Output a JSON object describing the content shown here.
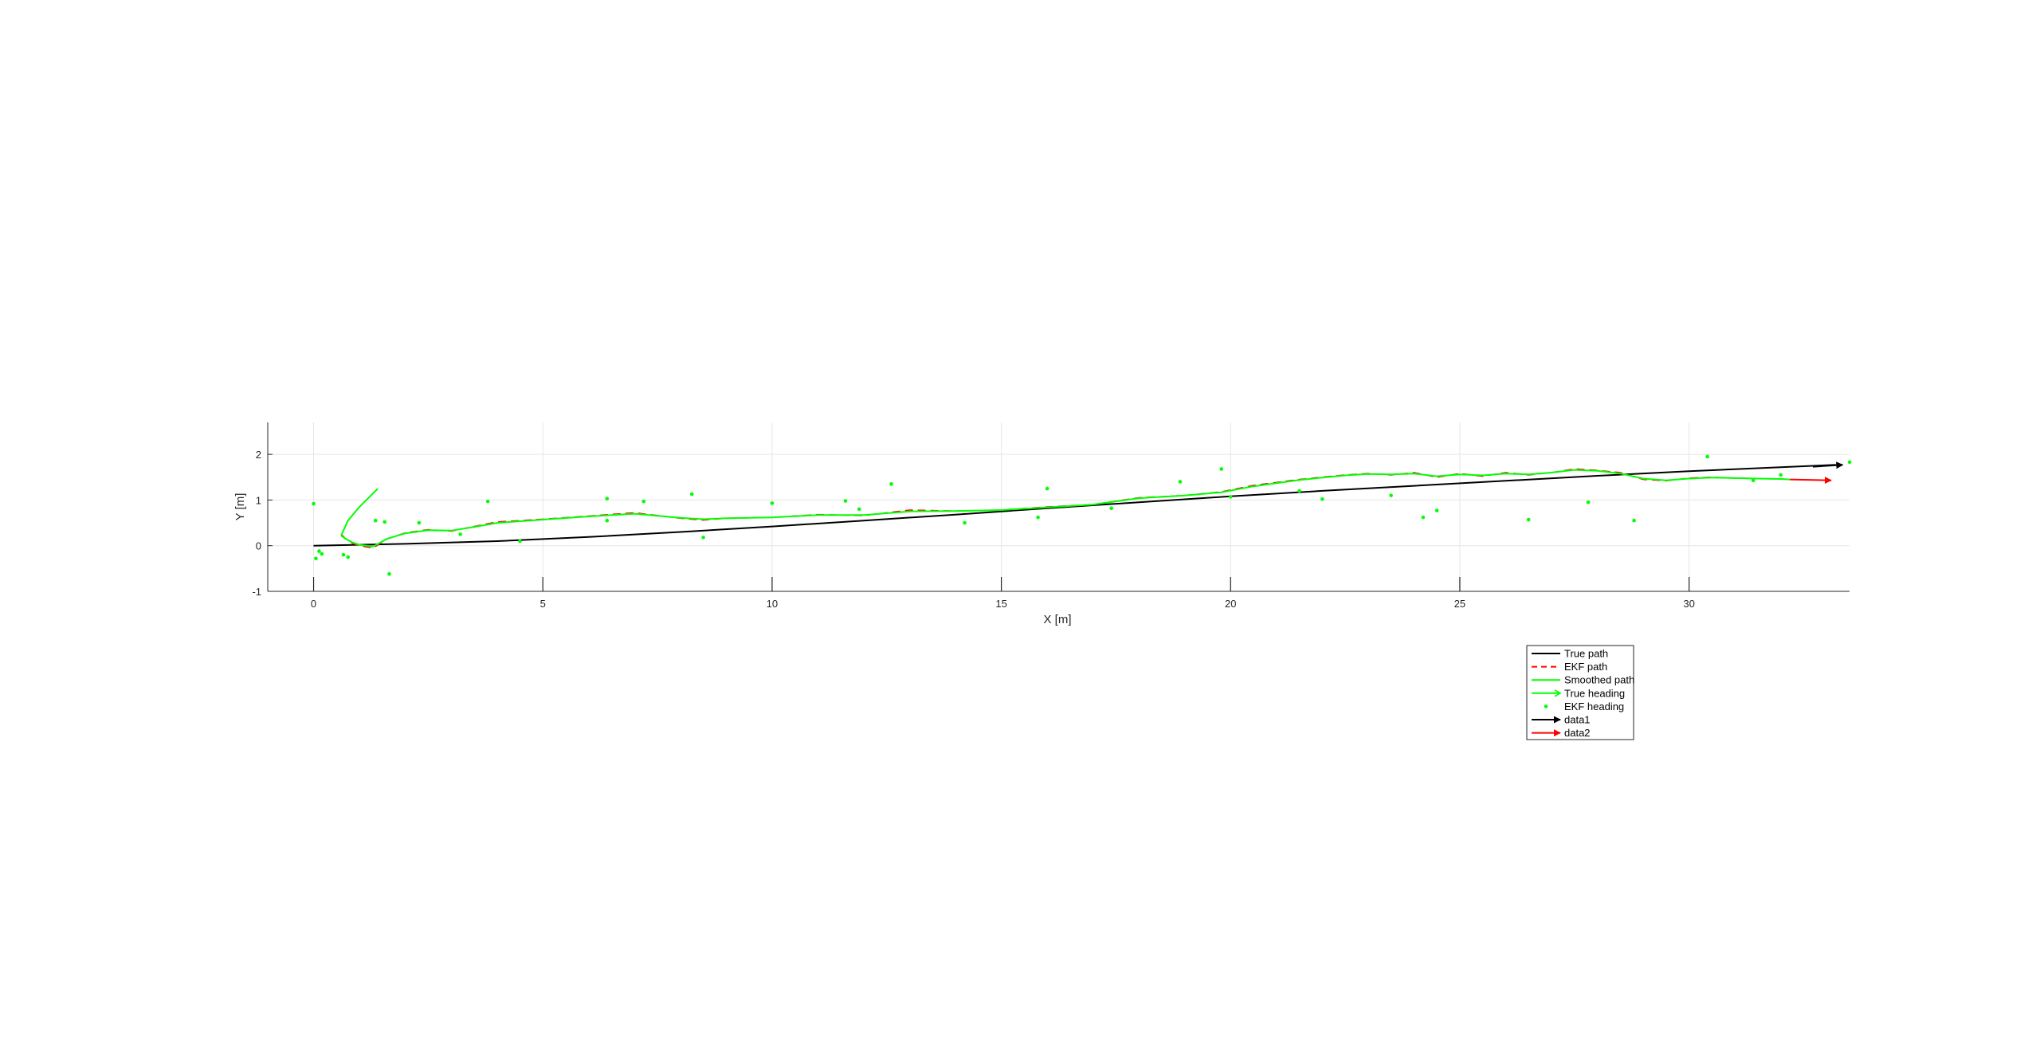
{
  "chart_data": {
    "type": "line",
    "xlabel": "X [m]",
    "ylabel": "Y [m]",
    "xlim": [
      -1,
      33.5
    ],
    "ylim": [
      -1,
      2.7
    ],
    "xticks": [
      0,
      5,
      10,
      15,
      20,
      25,
      30
    ],
    "yticks": [
      -1,
      0,
      1,
      2
    ],
    "grid": true,
    "legend_position": "below-right",
    "legend": [
      "True path",
      "EKF path",
      "Smoothed path",
      "True heading",
      "EKF heading",
      "data1",
      "data2"
    ],
    "colors": {
      "true_path": "#000000",
      "ekf_path": "#ff0000",
      "smoothed_path": "#00ff00",
      "true_heading": "#00ff00",
      "ekf_heading": "#00ff00",
      "data1": "#000000",
      "data2": "#ff0000",
      "grid": "#e6e6e6",
      "axis": "#262626"
    },
    "series": [
      {
        "name": "True path",
        "style": "solid",
        "x": [
          0,
          2,
          4,
          6,
          8,
          10,
          12,
          14,
          16,
          18,
          20,
          22,
          24,
          26,
          28,
          30,
          32,
          33.2
        ],
        "y": [
          0,
          0.04,
          0.1,
          0.19,
          0.3,
          0.42,
          0.55,
          0.68,
          0.82,
          0.95,
          1.08,
          1.2,
          1.31,
          1.42,
          1.53,
          1.63,
          1.72,
          1.77
        ]
      },
      {
        "name": "EKF path",
        "style": "dashed",
        "x": [
          0.6,
          0.7,
          0.85,
          1.0,
          1.3,
          1.6,
          2.0,
          2.5,
          3.0,
          3.5,
          4.0,
          5.0,
          6.0,
          7.0,
          8.0,
          8.5,
          9.0,
          10.0,
          11.0,
          12.0,
          13.0,
          14.0,
          15.0,
          16.0,
          17.0,
          18.0,
          19.0,
          19.8,
          20.5,
          21.5,
          22.5,
          23.0,
          23.5,
          24.0,
          24.5,
          25.0,
          25.5,
          26.0,
          26.5,
          27.0,
          27.5,
          28.0,
          28.5,
          29.0,
          29.5,
          30.0,
          30.5,
          31.0,
          31.5,
          32.0,
          32.2
        ],
        "y": [
          0.25,
          0.15,
          0.05,
          0.0,
          -0.05,
          0.15,
          0.28,
          0.35,
          0.32,
          0.42,
          0.52,
          0.58,
          0.65,
          0.72,
          0.6,
          0.56,
          0.6,
          0.62,
          0.68,
          0.66,
          0.78,
          0.76,
          0.78,
          0.85,
          0.9,
          1.05,
          1.1,
          1.18,
          1.32,
          1.45,
          1.55,
          1.58,
          1.55,
          1.6,
          1.5,
          1.58,
          1.52,
          1.6,
          1.55,
          1.6,
          1.68,
          1.65,
          1.6,
          1.45,
          1.42,
          1.48,
          1.5,
          1.48,
          1.47,
          1.46,
          1.45
        ]
      },
      {
        "name": "Smoothed path",
        "style": "solid",
        "x": [
          0.6,
          0.7,
          0.85,
          1.0,
          1.3,
          1.6,
          2.0,
          2.5,
          3.0,
          3.5,
          4.0,
          5.0,
          6.0,
          7.0,
          8.0,
          8.5,
          9.0,
          10.0,
          11.0,
          12.0,
          13.0,
          14.0,
          15.0,
          16.0,
          17.0,
          18.0,
          19.0,
          19.8,
          20.5,
          21.5,
          22.5,
          23.0,
          23.5,
          24.0,
          24.5,
          25.0,
          25.5,
          26.0,
          26.5,
          27.0,
          27.5,
          28.0,
          28.5,
          29.0,
          29.5,
          30.0,
          30.5,
          31.0,
          31.5,
          32.0,
          32.2
        ],
        "y": [
          0.22,
          0.15,
          0.07,
          0.02,
          -0.02,
          0.15,
          0.27,
          0.34,
          0.33,
          0.41,
          0.5,
          0.57,
          0.64,
          0.7,
          0.61,
          0.58,
          0.6,
          0.62,
          0.67,
          0.67,
          0.75,
          0.76,
          0.78,
          0.84,
          0.9,
          1.04,
          1.1,
          1.17,
          1.3,
          1.44,
          1.54,
          1.57,
          1.56,
          1.58,
          1.52,
          1.56,
          1.54,
          1.58,
          1.56,
          1.6,
          1.66,
          1.64,
          1.58,
          1.47,
          1.43,
          1.47,
          1.49,
          1.48,
          1.47,
          1.46,
          1.45
        ]
      },
      {
        "name": "True heading",
        "style": "solid",
        "x": [
          0.6,
          0.75,
          1.0,
          1.4
        ],
        "y": [
          0.22,
          0.55,
          0.85,
          1.25
        ]
      },
      {
        "name": "EKF heading",
        "style": "markers",
        "x": [
          0,
          0.05,
          0.12,
          0.18,
          0.65,
          0.75,
          1.35,
          1.55,
          1.65,
          2.3,
          3.2,
          3.8,
          4.5,
          6.4,
          6.4,
          7.2,
          8.25,
          8.5,
          10.0,
          11.6,
          11.9,
          12.6,
          14.2,
          15.8,
          16.0,
          17.4,
          18.9,
          19.8,
          20.0,
          21.5,
          22.0,
          23.5,
          24.2,
          24.5,
          26.5,
          27.8,
          28.8,
          30.4,
          31.4,
          32.0,
          33.5
        ],
        "y": [
          0.92,
          -0.28,
          -0.12,
          -0.18,
          -0.2,
          -0.25,
          0.55,
          0.52,
          -0.62,
          0.5,
          0.25,
          0.97,
          0.1,
          1.03,
          0.55,
          0.97,
          1.13,
          0.18,
          0.93,
          0.98,
          0.8,
          1.35,
          0.5,
          0.62,
          1.25,
          0.82,
          1.4,
          1.68,
          1.07,
          1.2,
          1.02,
          1.1,
          0.62,
          0.77,
          0.57,
          0.95,
          0.55,
          1.95,
          1.43,
          1.55,
          1.83
        ]
      },
      {
        "name": "data1",
        "style": "arrow",
        "x": [
          32.7,
          33.35
        ],
        "y": [
          1.73,
          1.77
        ]
      },
      {
        "name": "data2",
        "style": "arrow",
        "x": [
          32.2,
          33.1
        ],
        "y": [
          1.45,
          1.43
        ]
      }
    ]
  }
}
